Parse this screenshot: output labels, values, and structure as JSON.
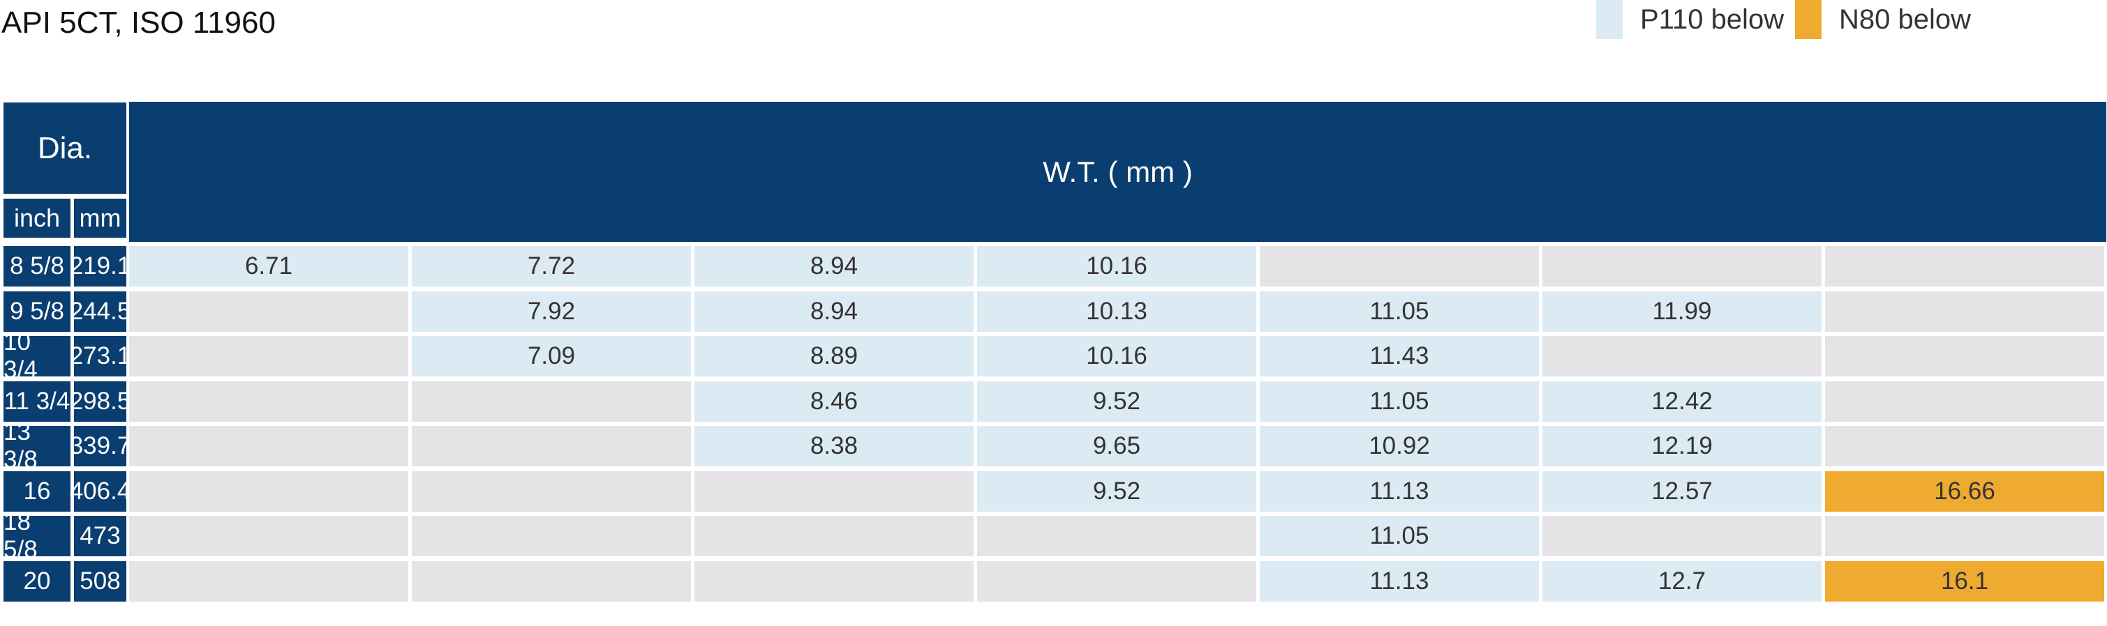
{
  "title": "API 5CT, ISO 11960",
  "legend": [
    {
      "label": "P110 below",
      "color": "#dceaf3"
    },
    {
      "label": "N80 below",
      "color": "#eeab30"
    }
  ],
  "colors": {
    "header": "#0b3e70",
    "empty": "#e4e4e6"
  },
  "table": {
    "dia_header": "Dia.",
    "inch_header": "inch",
    "mm_header": "mm",
    "wt_header": "W.T. ( mm )",
    "rows": [
      {
        "inch": "8 5/8",
        "mm": "219.1",
        "cells": [
          {
            "v": "6.71",
            "t": "p110"
          },
          {
            "v": "7.72",
            "t": "p110"
          },
          {
            "v": "8.94",
            "t": "p110"
          },
          {
            "v": "10.16",
            "t": "p110"
          },
          {
            "v": "",
            "t": "empty"
          },
          {
            "v": "",
            "t": "empty"
          },
          {
            "v": "",
            "t": "empty"
          }
        ]
      },
      {
        "inch": "9 5/8",
        "mm": "244.5",
        "cells": [
          {
            "v": "",
            "t": "empty"
          },
          {
            "v": "7.92",
            "t": "p110"
          },
          {
            "v": "8.94",
            "t": "p110"
          },
          {
            "v": "10.13",
            "t": "p110"
          },
          {
            "v": "11.05",
            "t": "p110"
          },
          {
            "v": "11.99",
            "t": "p110"
          },
          {
            "v": "",
            "t": "empty"
          }
        ]
      },
      {
        "inch": "10 3/4",
        "mm": "273.1",
        "cells": [
          {
            "v": "",
            "t": "empty"
          },
          {
            "v": "7.09",
            "t": "p110"
          },
          {
            "v": "8.89",
            "t": "p110"
          },
          {
            "v": "10.16",
            "t": "p110"
          },
          {
            "v": "11.43",
            "t": "p110"
          },
          {
            "v": "",
            "t": "empty"
          },
          {
            "v": "",
            "t": "empty"
          }
        ]
      },
      {
        "inch": "11 3/4",
        "mm": "298.5",
        "cells": [
          {
            "v": "",
            "t": "empty"
          },
          {
            "v": "",
            "t": "empty"
          },
          {
            "v": "8.46",
            "t": "p110"
          },
          {
            "v": "9.52",
            "t": "p110"
          },
          {
            "v": "11.05",
            "t": "p110"
          },
          {
            "v": "12.42",
            "t": "p110"
          },
          {
            "v": "",
            "t": "empty"
          }
        ]
      },
      {
        "inch": "13 3/8",
        "mm": "339.7",
        "cells": [
          {
            "v": "",
            "t": "empty"
          },
          {
            "v": "",
            "t": "empty"
          },
          {
            "v": "8.38",
            "t": "p110"
          },
          {
            "v": "9.65",
            "t": "p110"
          },
          {
            "v": "10.92",
            "t": "p110"
          },
          {
            "v": "12.19",
            "t": "p110"
          },
          {
            "v": "",
            "t": "empty"
          }
        ]
      },
      {
        "inch": "16",
        "mm": "406.4",
        "cells": [
          {
            "v": "",
            "t": "empty"
          },
          {
            "v": "",
            "t": "empty"
          },
          {
            "v": "",
            "t": "empty"
          },
          {
            "v": "9.52",
            "t": "p110"
          },
          {
            "v": "11.13",
            "t": "p110"
          },
          {
            "v": "12.57",
            "t": "p110"
          },
          {
            "v": "16.66",
            "t": "n80"
          }
        ]
      },
      {
        "inch": "18 5/8",
        "mm": "473",
        "cells": [
          {
            "v": "",
            "t": "empty"
          },
          {
            "v": "",
            "t": "empty"
          },
          {
            "v": "",
            "t": "empty"
          },
          {
            "v": "",
            "t": "empty"
          },
          {
            "v": "11.05",
            "t": "p110"
          },
          {
            "v": "",
            "t": "empty"
          },
          {
            "v": "",
            "t": "empty"
          }
        ]
      },
      {
        "inch": "20",
        "mm": "508",
        "cells": [
          {
            "v": "",
            "t": "empty"
          },
          {
            "v": "",
            "t": "empty"
          },
          {
            "v": "",
            "t": "empty"
          },
          {
            "v": "",
            "t": "empty"
          },
          {
            "v": "11.13",
            "t": "p110"
          },
          {
            "v": "12.7",
            "t": "p110"
          },
          {
            "v": "16.1",
            "t": "n80"
          }
        ]
      }
    ]
  }
}
